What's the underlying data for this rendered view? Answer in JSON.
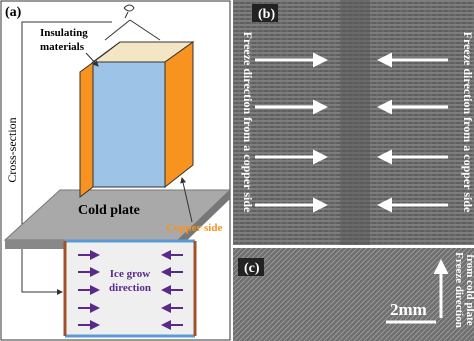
{
  "panel_a": {
    "label": "(a)",
    "insulating_label": [
      "Insulating",
      "materials"
    ],
    "cold_plate": "Cold plate",
    "copper_side": "Copper side",
    "cross_section": "Cross-section",
    "ice_label": [
      "Ice grow",
      "direction"
    ]
  },
  "panel_b": {
    "label": "(b)",
    "left_text": "Freeze direction from a copper side",
    "right_text": "Freeze direction from a copper side"
  },
  "panel_c": {
    "label": "(c)",
    "freeze_text": [
      "Freeze direction",
      "from cold plate"
    ],
    "scale": "2mm"
  }
}
